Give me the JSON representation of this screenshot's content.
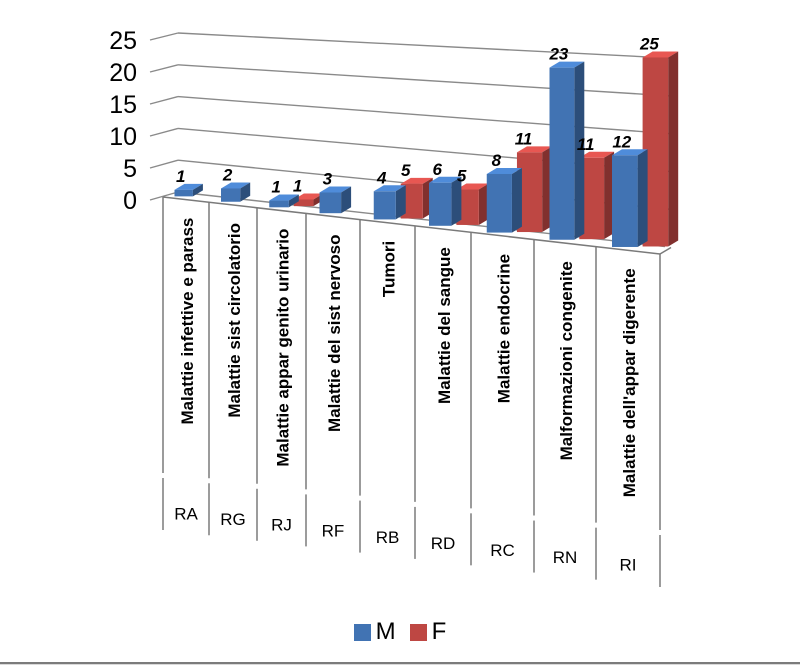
{
  "chart_data": {
    "type": "bar",
    "style": "3d-clustered-column",
    "title": "",
    "xlabel": "",
    "ylabel": "",
    "categories": [
      "Malattie infettive e parass",
      "Malattie sist circolatorio",
      "Malattie appar genito urinario",
      "Malattie del sist nervoso",
      "Tumori",
      "Malattie del sangue",
      "Malattie endocrine",
      "Malformazioni congenite",
      "Malattie dell'appar digerente"
    ],
    "category_codes": [
      "RA",
      "RG",
      "RJ",
      "RF",
      "RB",
      "RD",
      "RC",
      "RN",
      "RI"
    ],
    "series": [
      {
        "name": "M",
        "color": "#4173B3",
        "values": [
          1,
          2,
          1,
          3,
          4,
          6,
          8,
          23,
          12
        ]
      },
      {
        "name": "F",
        "color": "#BE4743",
        "values": [
          0,
          0,
          1,
          0,
          5,
          5,
          11,
          11,
          25
        ]
      }
    ],
    "data_labels": true,
    "zero_values_hidden": true,
    "y_ticks": [
      0,
      5,
      10,
      15,
      20,
      25
    ],
    "ylim": [
      0,
      25
    ],
    "grid": true,
    "legend_position": "bottom",
    "colors": {
      "gridline": "#8A8A8A",
      "axis_line": "#7A7A7A",
      "text": "#000000"
    }
  }
}
